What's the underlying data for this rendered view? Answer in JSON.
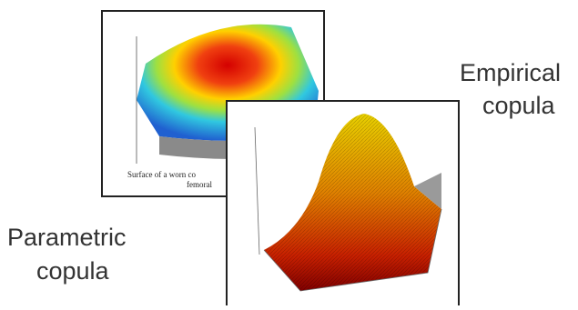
{
  "labels": {
    "empirical": [
      "Empirical",
      "copula"
    ],
    "parametric": [
      "Parametric",
      "copula"
    ]
  },
  "back_image": {
    "caption": [
      "Surface of a worn co",
      "femoral"
    ]
  }
}
